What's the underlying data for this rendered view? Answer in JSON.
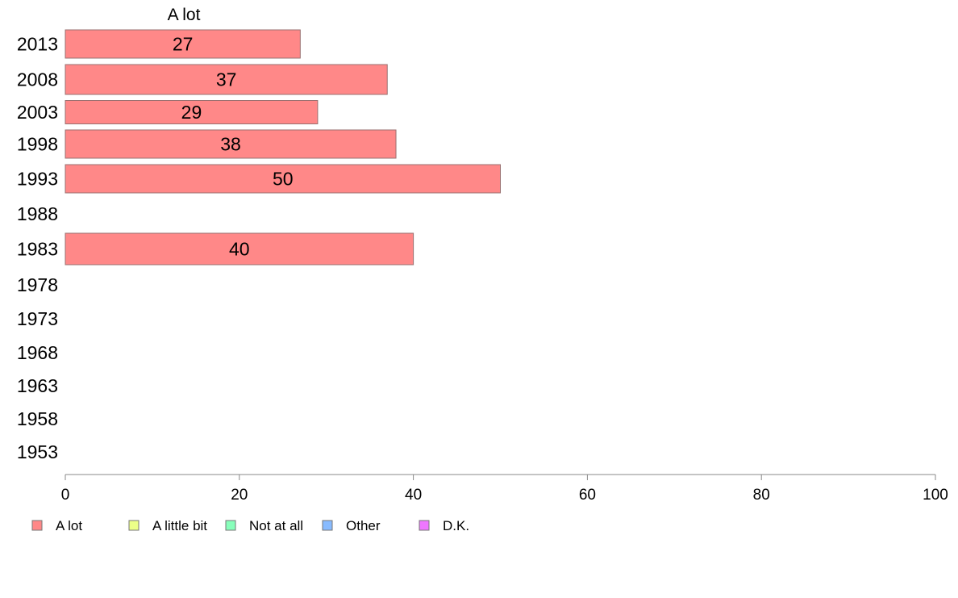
{
  "chart_data": {
    "type": "bar",
    "orientation": "horizontal",
    "title": "A lot",
    "xlabel": "",
    "ylabel": "",
    "categories": [
      "2013",
      "2008",
      "2003",
      "1998",
      "1993",
      "1988",
      "1983",
      "1978",
      "1973",
      "1968",
      "1963",
      "1958",
      "1953"
    ],
    "series": [
      {
        "name": "A lot",
        "color": "#ff8888",
        "values": [
          27,
          37,
          29,
          38,
          50,
          null,
          40,
          null,
          null,
          null,
          null,
          null,
          null
        ],
        "labels": [
          "27",
          "37",
          "29",
          "38",
          "50",
          "",
          "40",
          "",
          "",
          "",
          "",
          "",
          ""
        ]
      }
    ],
    "xlim": [
      0,
      100
    ],
    "xticks": [
      0,
      20,
      40,
      60,
      80,
      100
    ],
    "grid": false,
    "legend": {
      "placement": "bottom-left",
      "entries": [
        {
          "label": "A lot",
          "color": "#ff8888"
        },
        {
          "label": "A little bit",
          "color": "#ecff88"
        },
        {
          "label": "Not at all",
          "color": "#88ffbb"
        },
        {
          "label": "Other",
          "color": "#88bbff"
        },
        {
          "label": "D.K.",
          "color": "#ee77ff"
        }
      ]
    }
  }
}
